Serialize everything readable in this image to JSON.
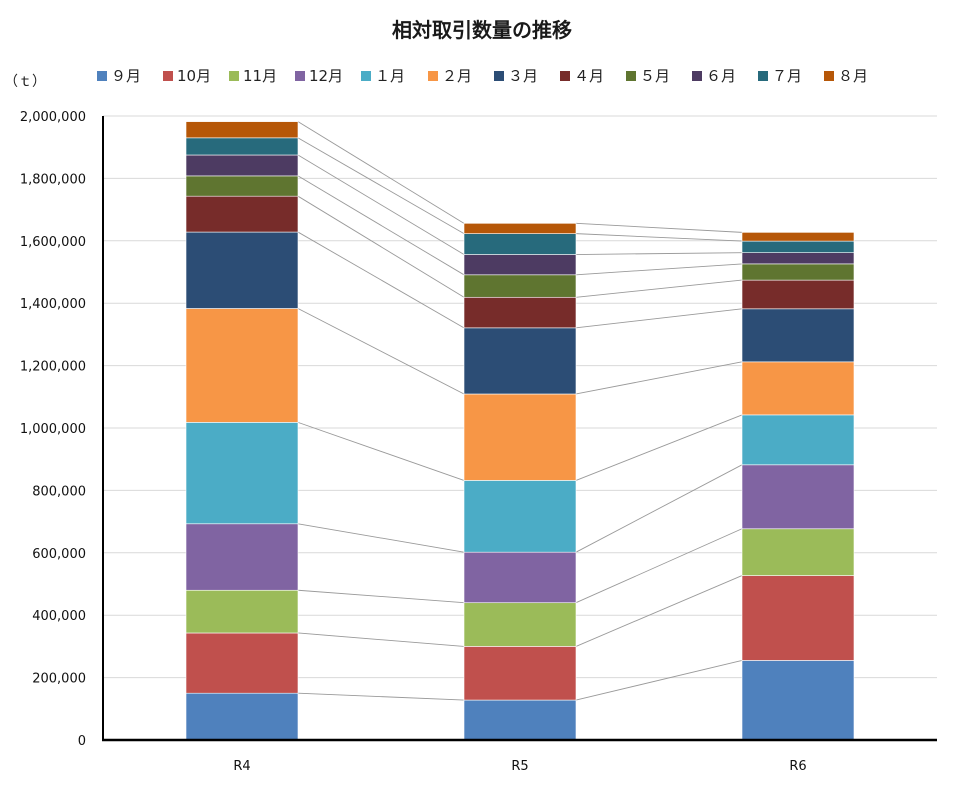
{
  "chart_data": {
    "type": "bar",
    "stacked": true,
    "title": "相対取引数量の推移",
    "unit_label": "（ｔ）",
    "categories": [
      "R4",
      "R5",
      "R6"
    ],
    "ylim": [
      0,
      2000000
    ],
    "y_ticks": [
      "0",
      "200,000",
      "400,000",
      "600,000",
      "800,000",
      "1,000,000",
      "1,200,000",
      "1,400,000",
      "1,600,000",
      "1,800,000",
      "2,000,000"
    ],
    "grid": true,
    "legend_position": "top",
    "series_lines": true,
    "series": [
      {
        "name": "９月",
        "color": "#4F81BD",
        "values": [
          150000,
          128000,
          255000
        ]
      },
      {
        "name": "10月",
        "color": "#C0504D",
        "values": [
          193000,
          172000,
          272000
        ]
      },
      {
        "name": "11月",
        "color": "#9BBB59",
        "values": [
          137000,
          140000,
          150000
        ]
      },
      {
        "name": "12月",
        "color": "#8064A2",
        "values": [
          213000,
          162000,
          205000
        ]
      },
      {
        "name": "１月",
        "color": "#4BACC6",
        "values": [
          325000,
          230000,
          160000
        ]
      },
      {
        "name": "２月",
        "color": "#F79646",
        "values": [
          365000,
          277000,
          170000
        ]
      },
      {
        "name": "３月",
        "color": "#2C4D75",
        "values": [
          245000,
          212000,
          170000
        ]
      },
      {
        "name": "４月",
        "color": "#772C2A",
        "values": [
          115000,
          98000,
          92000
        ]
      },
      {
        "name": "５月",
        "color": "#5F7530",
        "values": [
          65000,
          72000,
          52000
        ]
      },
      {
        "name": "６月",
        "color": "#4D3B62",
        "values": [
          67000,
          65000,
          36000
        ]
      },
      {
        "name": "７月",
        "color": "#276A7C",
        "values": [
          55000,
          67000,
          37000
        ]
      },
      {
        "name": "８月",
        "color": "#B65708",
        "values": [
          52000,
          33000,
          28000
        ]
      }
    ]
  }
}
